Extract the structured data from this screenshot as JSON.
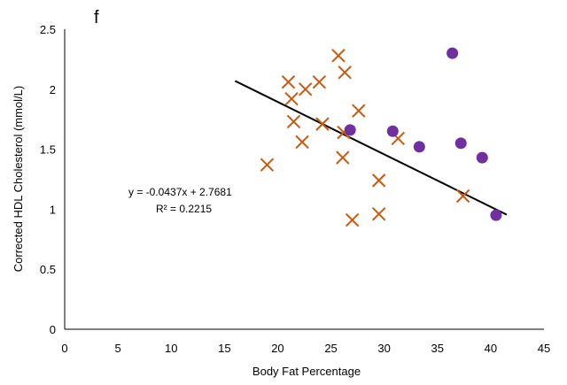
{
  "chart_data": {
    "type": "scatter",
    "panel_label": "f",
    "xlabel": "Body Fat Percentage",
    "ylabel": "Corrected HDL Cholesterol (mmol/L)",
    "xlim": [
      0,
      45
    ],
    "ylim": [
      0,
      2.5
    ],
    "x_ticks": [
      "0",
      "5",
      "10",
      "15",
      "20",
      "25",
      "30",
      "35",
      "40",
      "45"
    ],
    "y_ticks": [
      "0",
      "0.5",
      "1",
      "1.5",
      "2",
      "2.5"
    ],
    "grid": false,
    "series": [
      {
        "marker": "cross",
        "color": "#C55A11",
        "points": [
          [
            19.0,
            1.37
          ],
          [
            21.0,
            2.06
          ],
          [
            21.3,
            1.92
          ],
          [
            21.5,
            1.73
          ],
          [
            22.3,
            1.56
          ],
          [
            22.6,
            2.0
          ],
          [
            23.9,
            2.06
          ],
          [
            24.2,
            1.71
          ],
          [
            25.7,
            2.28
          ],
          [
            26.1,
            1.43
          ],
          [
            26.2,
            1.64
          ],
          [
            26.3,
            2.14
          ],
          [
            27.0,
            0.91
          ],
          [
            27.6,
            1.82
          ],
          [
            29.5,
            0.96
          ],
          [
            29.5,
            1.24
          ],
          [
            31.3,
            1.59
          ],
          [
            37.4,
            1.11
          ]
        ]
      },
      {
        "marker": "circle",
        "color": "#7030A0",
        "points": [
          [
            26.8,
            1.66
          ],
          [
            30.8,
            1.65
          ],
          [
            33.3,
            1.52
          ],
          [
            36.4,
            2.3
          ],
          [
            37.2,
            1.55
          ],
          [
            39.2,
            1.43
          ],
          [
            40.5,
            0.95
          ]
        ]
      }
    ],
    "trendline": {
      "slope": -0.0437,
      "intercept": 2.7681,
      "x_range": [
        16,
        41.5
      ],
      "color": "#000000"
    },
    "equation_text": "y = -0.0437x + 2.7681",
    "r2_text": "R² = 0.2215"
  }
}
